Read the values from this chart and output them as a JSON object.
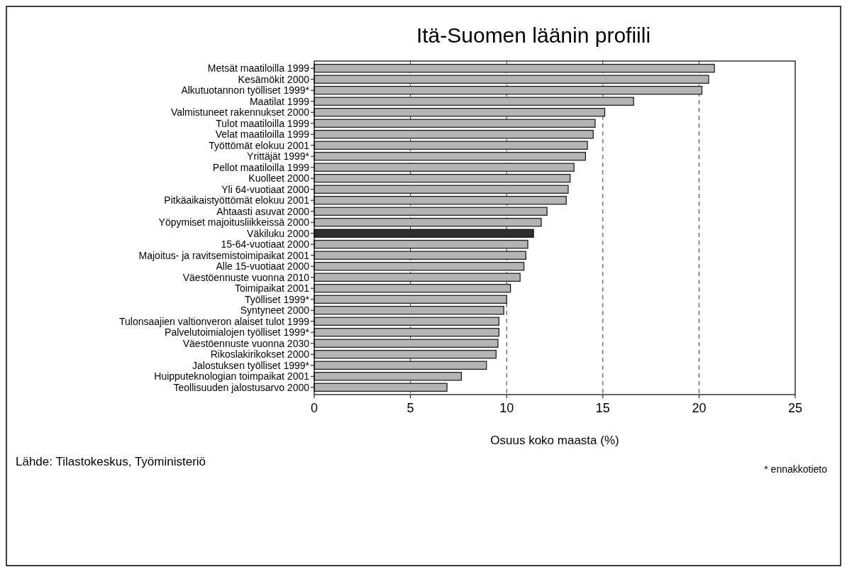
{
  "chart_data": {
    "type": "bar",
    "orientation": "horizontal",
    "title": "Itä-Suomen läänin profiili",
    "xlabel": "Osuus koko maasta (%)",
    "categories": [
      "Metsät maatiloilla 1999",
      "Kesämökit 2000",
      "Alkutuotannon työlliset 1999*",
      "Maatilat 1999",
      "Valmistuneet rakennukset 2000",
      "Tulot maatiloilla 1999",
      "Velat maatiloilla 1999",
      "Työttömät elokuu 2001",
      "Yrittäjät 1999*",
      "Pellot maatiloilla 1999",
      "Kuolleet 2000",
      "Yli 64-vuotiaat 2000",
      "Pitkäaikaistyöttömät elokuu 2001",
      "Ahtaasti asuvat 2000",
      "Yöpymiset majoitusliikkeissä 2000",
      "Väkiluku 2000",
      "15-64-vuotiaat 2000",
      "Majoitus- ja ravitsemistoimipaikat 2001",
      "Alle 15-vuotiaat 2000",
      "Väestöennuste vuonna 2010",
      "Toimipaikat 2001",
      "Työlliset 1999*",
      "Syntyneet 2000",
      "Tulonsaajien valtionveron alaiset tulot 1999",
      "Palvelutoimialojen työlliset 1999*",
      "Väestöennuste  vuonna 2030",
      "Rikoslakirikokset 2000",
      "Jalostuksen työlliset 1999*",
      "Huipputeknologian toimpaikat 2001",
      "Teollisuuden jalostusarvo 2000"
    ],
    "values": [
      20.8,
      20.5,
      20.15,
      16.6,
      15.1,
      14.6,
      14.5,
      14.2,
      14.1,
      13.5,
      13.3,
      13.2,
      13.1,
      12.1,
      11.8,
      11.4,
      11.1,
      11.0,
      10.9,
      10.7,
      10.2,
      10.0,
      9.85,
      9.6,
      9.6,
      9.55,
      9.45,
      8.95,
      7.65,
      6.9
    ],
    "colors": [
      "#b4b4b4",
      "#b4b4b4",
      "#b4b4b4",
      "#b4b4b4",
      "#b4b4b4",
      "#b4b4b4",
      "#b4b4b4",
      "#b4b4b4",
      "#b4b4b4",
      "#b4b4b4",
      "#b4b4b4",
      "#b4b4b4",
      "#b4b4b4",
      "#b4b4b4",
      "#b4b4b4",
      "#2e2e2e",
      "#b4b4b4",
      "#b4b4b4",
      "#b4b4b4",
      "#b4b4b4",
      "#b4b4b4",
      "#b4b4b4",
      "#b4b4b4",
      "#b4b4b4",
      "#b4b4b4",
      "#b4b4b4",
      "#b4b4b4",
      "#b4b4b4",
      "#b4b4b4",
      "#b4b4b4"
    ],
    "xlim": [
      0,
      25
    ],
    "xticks": [
      0,
      5,
      10,
      15,
      20,
      25
    ],
    "grid": "x",
    "annotations": [
      "Lähde: Tilastokeskus, Työministeriö",
      "* ennakkotieto"
    ]
  }
}
